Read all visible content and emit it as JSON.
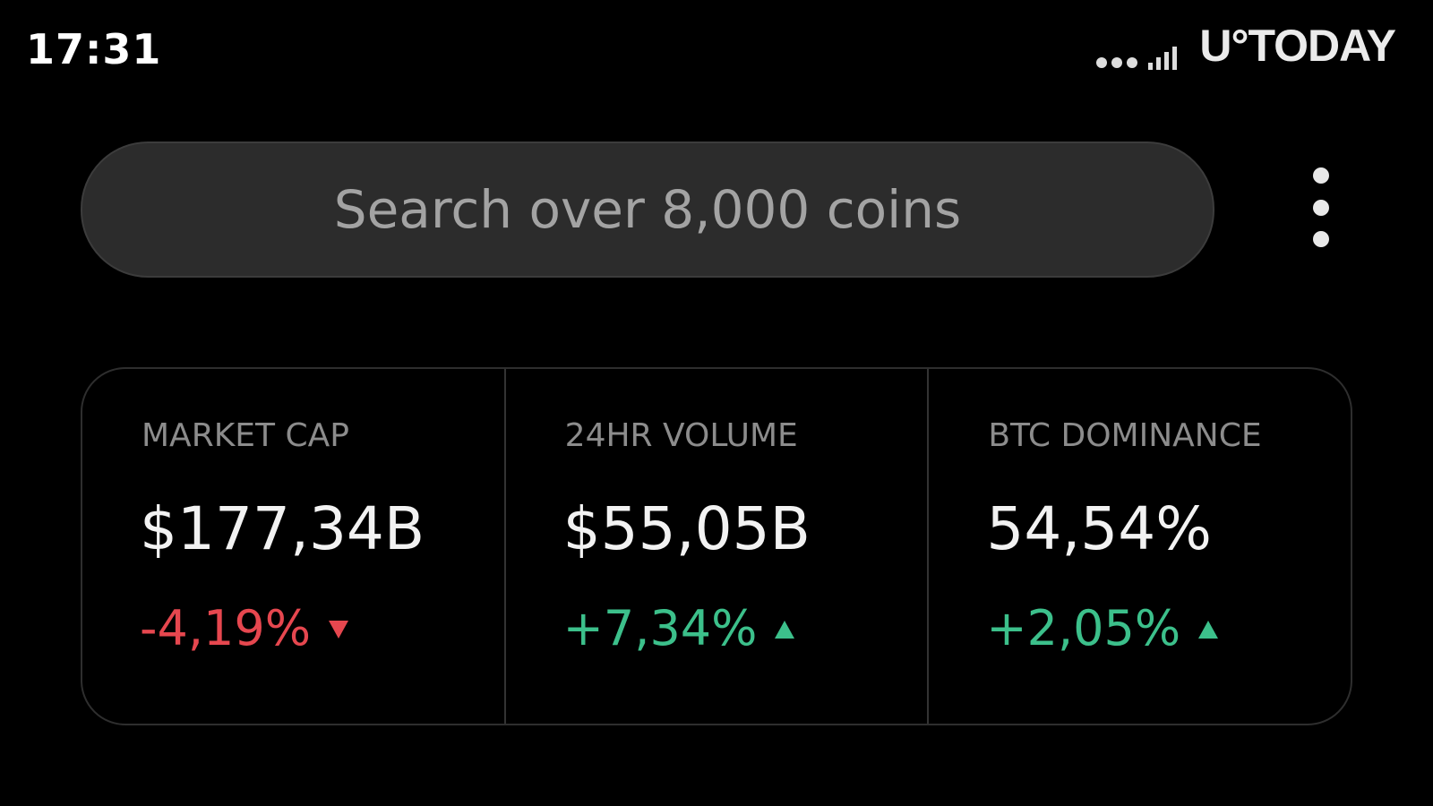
{
  "status_bar": {
    "time": "17:31"
  },
  "watermark": "U°TODAY",
  "search": {
    "placeholder": "Search over 8,000 coins"
  },
  "stats": [
    {
      "label": "MARKET CAP",
      "value": "$177,34B",
      "change": "-4,19%",
      "direction": "down"
    },
    {
      "label": "24HR VOLUME",
      "value": "$55,05B",
      "change": "+7,34%",
      "direction": "up"
    },
    {
      "label": "BTC DOMINANCE",
      "value": "54,54%",
      "change": "+2,05%",
      "direction": "up"
    }
  ]
}
